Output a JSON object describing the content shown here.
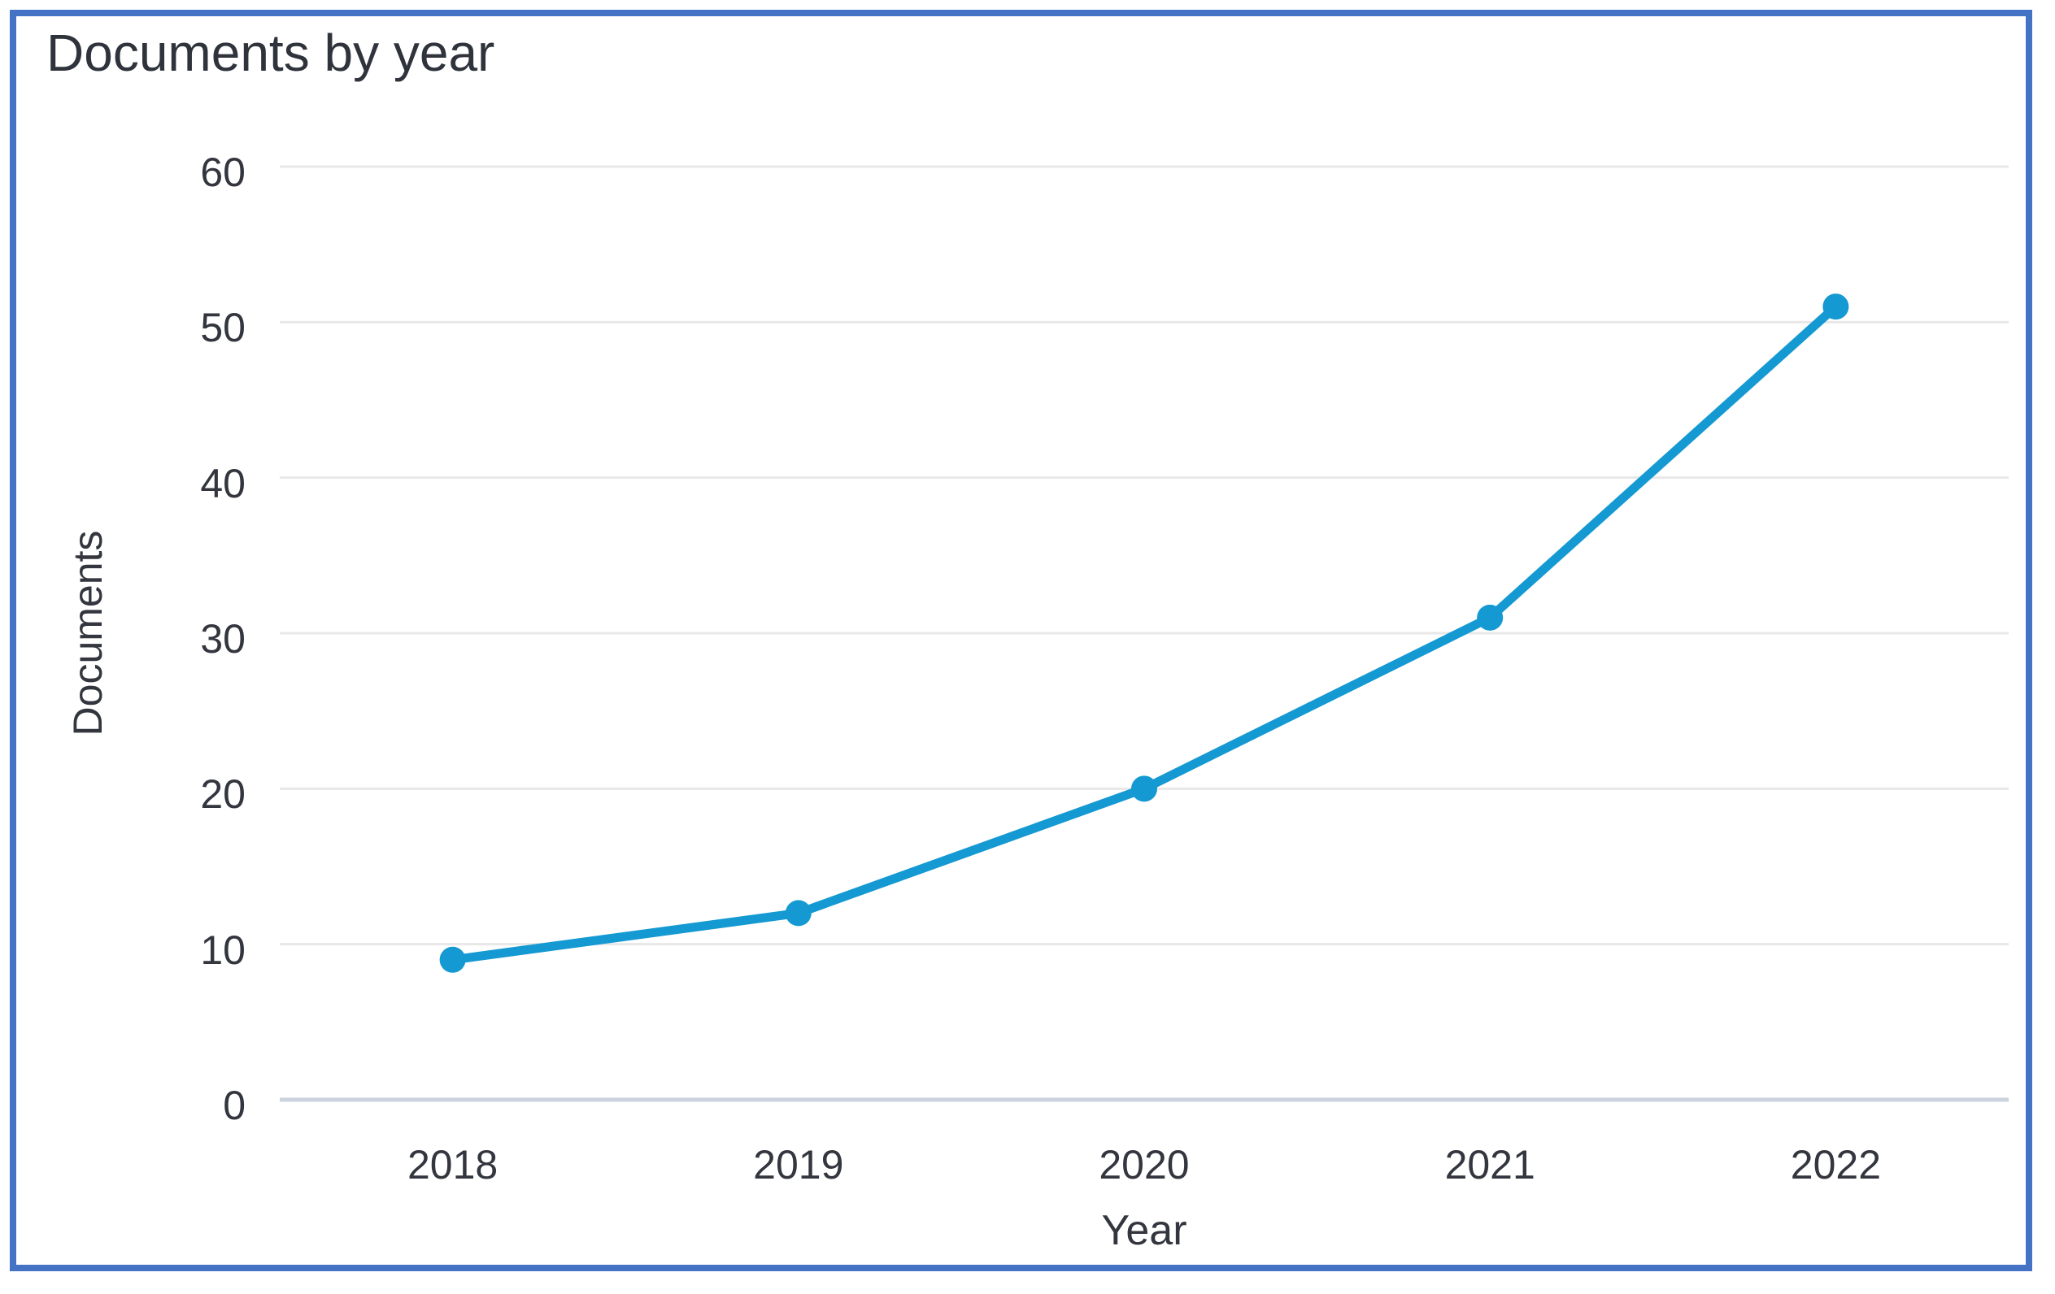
{
  "chart_data": {
    "type": "line",
    "title": "Documents by year",
    "xlabel": "Year",
    "ylabel": "Documents",
    "categories": [
      "2018",
      "2019",
      "2020",
      "2021",
      "2022"
    ],
    "values": [
      9,
      12,
      20,
      31,
      51
    ],
    "yticks": [
      0,
      10,
      20,
      30,
      40,
      50,
      60
    ],
    "ylim": [
      0,
      60
    ],
    "grid": "horizontal",
    "legend": "none",
    "marker": "circle",
    "colors": {
      "line": "#1499d2",
      "marker": "#1499d2",
      "gridline": "#e8e8e8",
      "axis_line": "#ccd3de",
      "text": "#33363e",
      "title_text": "#2f333b",
      "frame_border": "#4472c4",
      "background": "#ffffff"
    }
  }
}
